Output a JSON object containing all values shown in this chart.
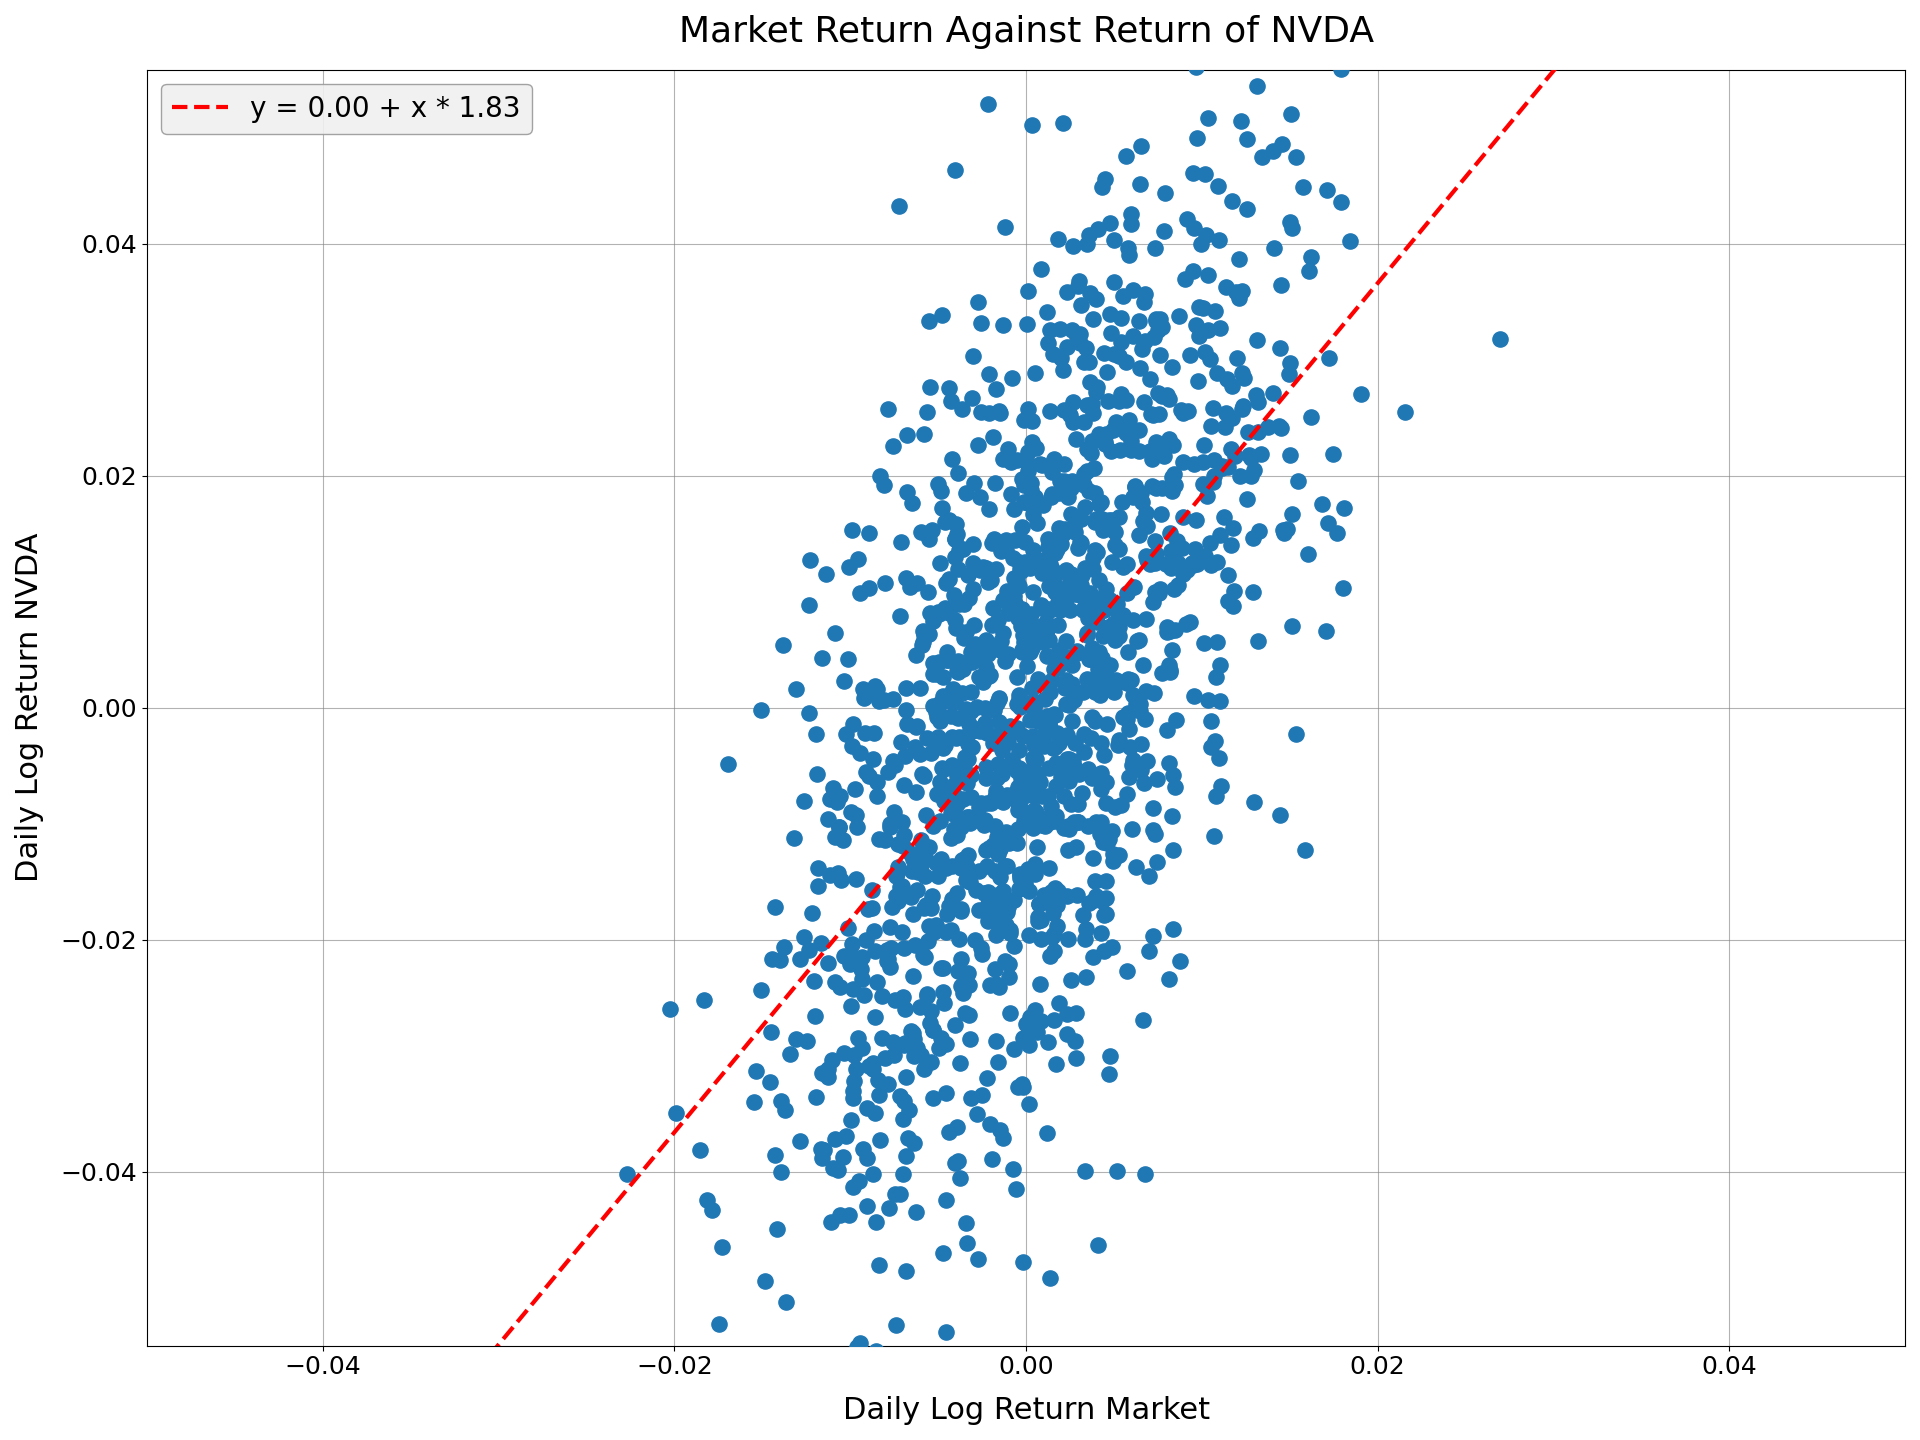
{
  "title": "Market Return Against Return of NVDA",
  "xlabel": "Daily Log Return Market",
  "ylabel": "Daily Log Return NVDA",
  "intercept": 0.0,
  "slope": 1.83,
  "legend_label": "y = 0.00 + x * 1.83",
  "xlim": [
    -0.05,
    0.05
  ],
  "ylim": [
    -0.055,
    0.055
  ],
  "scatter_color": "#1f77b4",
  "line_color": "red",
  "line_style": "--",
  "marker_size": 120,
  "alpha": 1.0,
  "seed": 42,
  "n_points": 1500,
  "market_std": 0.007,
  "noise_std": 0.018,
  "title_fontsize": 26,
  "label_fontsize": 22,
  "tick_fontsize": 18,
  "legend_fontsize": 20,
  "figwidth": 19.2,
  "figheight": 14.4
}
